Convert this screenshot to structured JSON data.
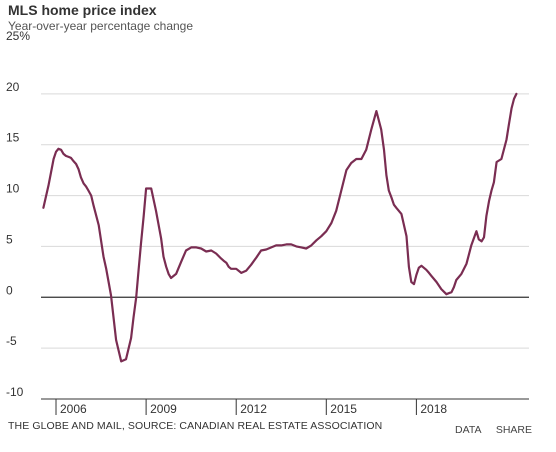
{
  "chart_data": {
    "type": "line",
    "title": "MLS home price index",
    "subtitle": "Year-over-year percentage change",
    "ylim": [
      -10,
      25
    ],
    "yticks": [
      -10,
      -5,
      0,
      5,
      10,
      15,
      20,
      25
    ],
    "ytick_labels": [
      "-10",
      "-5",
      "0",
      "5",
      "10",
      "15",
      "20",
      "25%"
    ],
    "xlim": [
      2005.5,
      2021.75
    ],
    "xticks": [
      2006,
      2009,
      2012,
      2015,
      2018
    ],
    "xtick_labels": [
      "2006",
      "2009",
      "2012",
      "2015",
      "2018"
    ],
    "grid": "horizontal",
    "legend": "none",
    "line_color": "#7a2d52",
    "series": [
      {
        "x": [
          2005.58,
          2005.75,
          2005.92,
          2006.0,
          2006.08,
          2006.17,
          2006.25,
          2006.33,
          2006.42,
          2006.5,
          2006.58,
          2006.67,
          2006.75,
          2006.83,
          2006.92,
          2007.0,
          2007.08,
          2007.17,
          2007.25,
          2007.42,
          2007.58,
          2007.67,
          2007.75,
          2007.83,
          2008.0,
          2008.17,
          2008.33,
          2008.5,
          2008.58,
          2008.67,
          2008.75,
          2008.83,
          2008.92,
          2009.0,
          2009.17,
          2009.33,
          2009.5,
          2009.58,
          2009.67,
          2009.75,
          2009.83,
          2010.0,
          2010.17,
          2010.33,
          2010.5,
          2010.67,
          2010.83,
          2011.0,
          2011.17,
          2011.33,
          2011.5,
          2011.58,
          2011.67,
          2011.75,
          2011.83,
          2012.0,
          2012.17,
          2012.33,
          2012.5,
          2012.67,
          2012.83,
          2013.0,
          2013.17,
          2013.33,
          2013.5,
          2013.67,
          2013.83,
          2014.0,
          2014.17,
          2014.33,
          2014.5,
          2014.67,
          2014.83,
          2015.0,
          2015.17,
          2015.33,
          2015.5,
          2015.67,
          2015.83,
          2016.0,
          2016.17,
          2016.33,
          2016.5,
          2016.67,
          2016.83,
          2016.92,
          2017.0,
          2017.08,
          2017.17,
          2017.25,
          2017.33,
          2017.5,
          2017.67,
          2017.75,
          2017.83,
          2017.92,
          2018.0,
          2018.08,
          2018.17,
          2018.33,
          2018.42,
          2018.5,
          2018.67,
          2018.83,
          2019.0,
          2019.08,
          2019.17,
          2019.25,
          2019.33,
          2019.5,
          2019.67,
          2019.83,
          2020.0,
          2020.08,
          2020.17,
          2020.25,
          2020.33,
          2020.42,
          2020.5,
          2020.58,
          2020.67,
          2020.83,
          2021.0,
          2021.08,
          2021.17,
          2021.25,
          2021.33
        ],
        "values": [
          8.8,
          11.0,
          13.6,
          14.3,
          14.6,
          14.5,
          14.1,
          13.9,
          13.8,
          13.7,
          13.4,
          13.1,
          12.6,
          11.8,
          11.2,
          10.9,
          10.5,
          10.0,
          9.0,
          7.1,
          4.0,
          2.8,
          1.5,
          0.2,
          -4.2,
          -6.3,
          -6.1,
          -4.0,
          -2.0,
          0.0,
          2.7,
          5.3,
          8.0,
          10.7,
          10.7,
          8.5,
          5.8,
          4.0,
          3.0,
          2.3,
          1.9,
          2.3,
          3.5,
          4.6,
          4.9,
          4.9,
          4.8,
          4.5,
          4.6,
          4.3,
          3.8,
          3.6,
          3.4,
          3.0,
          2.8,
          2.8,
          2.4,
          2.6,
          3.2,
          3.9,
          4.6,
          4.7,
          4.9,
          5.1,
          5.1,
          5.2,
          5.2,
          5.0,
          4.9,
          4.8,
          5.1,
          5.6,
          6.0,
          6.5,
          7.3,
          8.5,
          10.5,
          12.5,
          13.2,
          13.6,
          13.6,
          14.5,
          16.5,
          18.3,
          16.5,
          14.5,
          12.0,
          10.5,
          9.8,
          9.1,
          8.8,
          8.2,
          6.0,
          3.0,
          1.5,
          1.3,
          2.2,
          2.9,
          3.1,
          2.7,
          2.4,
          2.1,
          1.5,
          0.8,
          0.3,
          0.4,
          0.5,
          1.0,
          1.7,
          2.3,
          3.3,
          5.1,
          6.5,
          5.7,
          5.5,
          5.9,
          8.0,
          9.5,
          10.5,
          11.3,
          13.3,
          13.6,
          15.5,
          17.0,
          18.6,
          19.5,
          20.0
        ]
      }
    ]
  },
  "footer": {
    "source": "THE GLOBE AND MAIL, SOURCE: CANADIAN REAL ESTATE ASSOCIATION",
    "data_link": "DATA",
    "share_link": "SHARE"
  }
}
